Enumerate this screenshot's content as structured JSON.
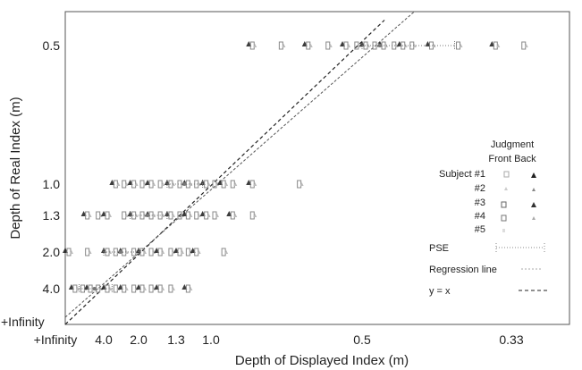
{
  "chart_data": {
    "type": "scatter",
    "xlabel": "Depth of Displayed Index (m)",
    "ylabel": "Depth of Real Index (m)",
    "x_ticks": [
      "+Infinity",
      "4.0",
      "2.0",
      "1.3",
      "1.0",
      "0.5",
      "0.33"
    ],
    "x_tick_diopters": [
      0,
      0.25,
      0.5,
      0.75,
      1.0,
      2.0,
      3.0
    ],
    "y_ticks": [
      "+Infinity",
      "4.0",
      "2.0",
      "1.3",
      "1.0",
      "0.5"
    ],
    "y_tick_diopters": [
      0,
      0.25,
      0.5,
      0.75,
      1.0,
      2.0
    ],
    "xlim_diopters": [
      0,
      3.4
    ],
    "ylim_diopters": [
      0,
      2.2
    ],
    "legend": {
      "header_line1": "Judgment",
      "header_line2": "Front Back",
      "subjects": [
        "Subject #1",
        "#2",
        "#3",
        "#4",
        "#5"
      ],
      "pse_label": "PSE",
      "regression_label": "Regression line",
      "identity_label": "y = x"
    },
    "rows": [
      {
        "y": "4.0",
        "x_positions": [
          0.04,
          0.09,
          0.14,
          0.19,
          0.25,
          0.31,
          0.37,
          0.44,
          0.5,
          0.56,
          0.62,
          0.69,
          0.81
        ]
      },
      {
        "y": "2.0",
        "x_positions": [
          0.0,
          0.12,
          0.25,
          0.31,
          0.37,
          0.44,
          0.5,
          0.56,
          0.62,
          0.69,
          0.75,
          0.81,
          0.87,
          1.06
        ]
      },
      {
        "y": "1.3",
        "x_positions": [
          0.12,
          0.19,
          0.25,
          0.37,
          0.44,
          0.5,
          0.56,
          0.62,
          0.69,
          0.75,
          0.81,
          0.87,
          0.94,
          1.0,
          1.12,
          1.25
        ]
      },
      {
        "y": "1.0",
        "x_positions": [
          0.31,
          0.37,
          0.44,
          0.5,
          0.56,
          0.62,
          0.69,
          0.75,
          0.81,
          0.87,
          0.94,
          1.0,
          1.06,
          1.12,
          1.25,
          1.56
        ]
      },
      {
        "y": "0.5",
        "x_positions": [
          1.25,
          1.44,
          1.62,
          1.75,
          1.87,
          1.94,
          2.0,
          2.06,
          2.12,
          2.19,
          2.25,
          2.31,
          2.44,
          2.62,
          2.87,
          3.06
        ]
      }
    ],
    "pse_points": [
      {
        "y": "0.5",
        "x": 2.12,
        "err_low": 2.0,
        "err_high": 2.62
      },
      {
        "y": "1.0",
        "x": 0.81,
        "err_low": 0.69,
        "err_high": 0.94
      },
      {
        "y": "1.3",
        "x": 0.56,
        "err_low": 0.44,
        "err_high": 0.69
      },
      {
        "y": "2.0",
        "x": 0.37,
        "err_low": 0.25,
        "err_high": 0.5
      },
      {
        "y": "4.0",
        "x": 0.19,
        "err_low": 0.09,
        "err_high": 0.31
      }
    ],
    "regression_line": {
      "slope": 0.92,
      "intercept": 0.05
    },
    "identity_line": {
      "slope": 1.0,
      "intercept": 0.0
    },
    "series_colors": {
      "front": "#888888",
      "back": "#1a1a1a",
      "pse": "#777777",
      "regression": "#555555",
      "identity": "#222222"
    }
  }
}
